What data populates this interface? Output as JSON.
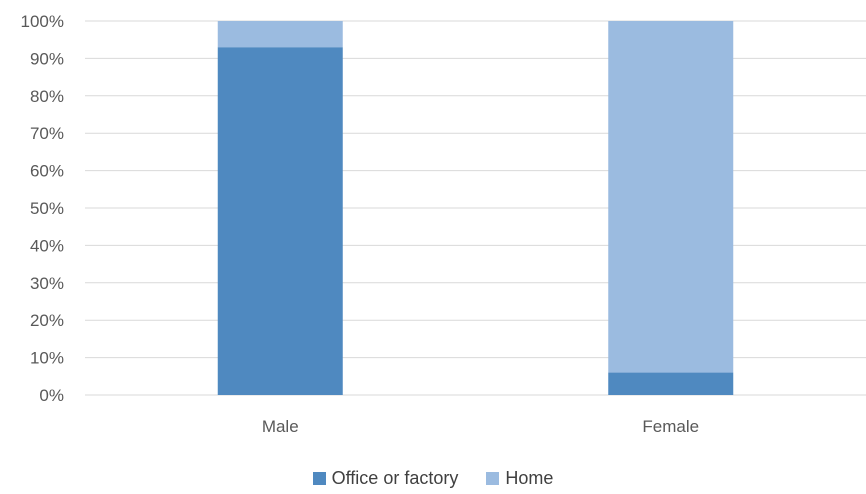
{
  "chart_data": {
    "type": "bar",
    "stacked": true,
    "title": "",
    "categories": [
      "Male",
      "Female"
    ],
    "series": [
      {
        "name": "Office or factory",
        "values": [
          93,
          6
        ],
        "color": "#4f89c0"
      },
      {
        "name": "Home",
        "values": [
          7,
          94
        ],
        "color": "#9bbbe0"
      }
    ],
    "ylim": [
      0,
      100
    ],
    "yticks": [
      "0%",
      "10%",
      "20%",
      "30%",
      "40%",
      "50%",
      "60%",
      "70%",
      "80%",
      "90%",
      "100%"
    ],
    "grid": true,
    "legend": "bottom",
    "gridColor": "#d9d9d9"
  }
}
